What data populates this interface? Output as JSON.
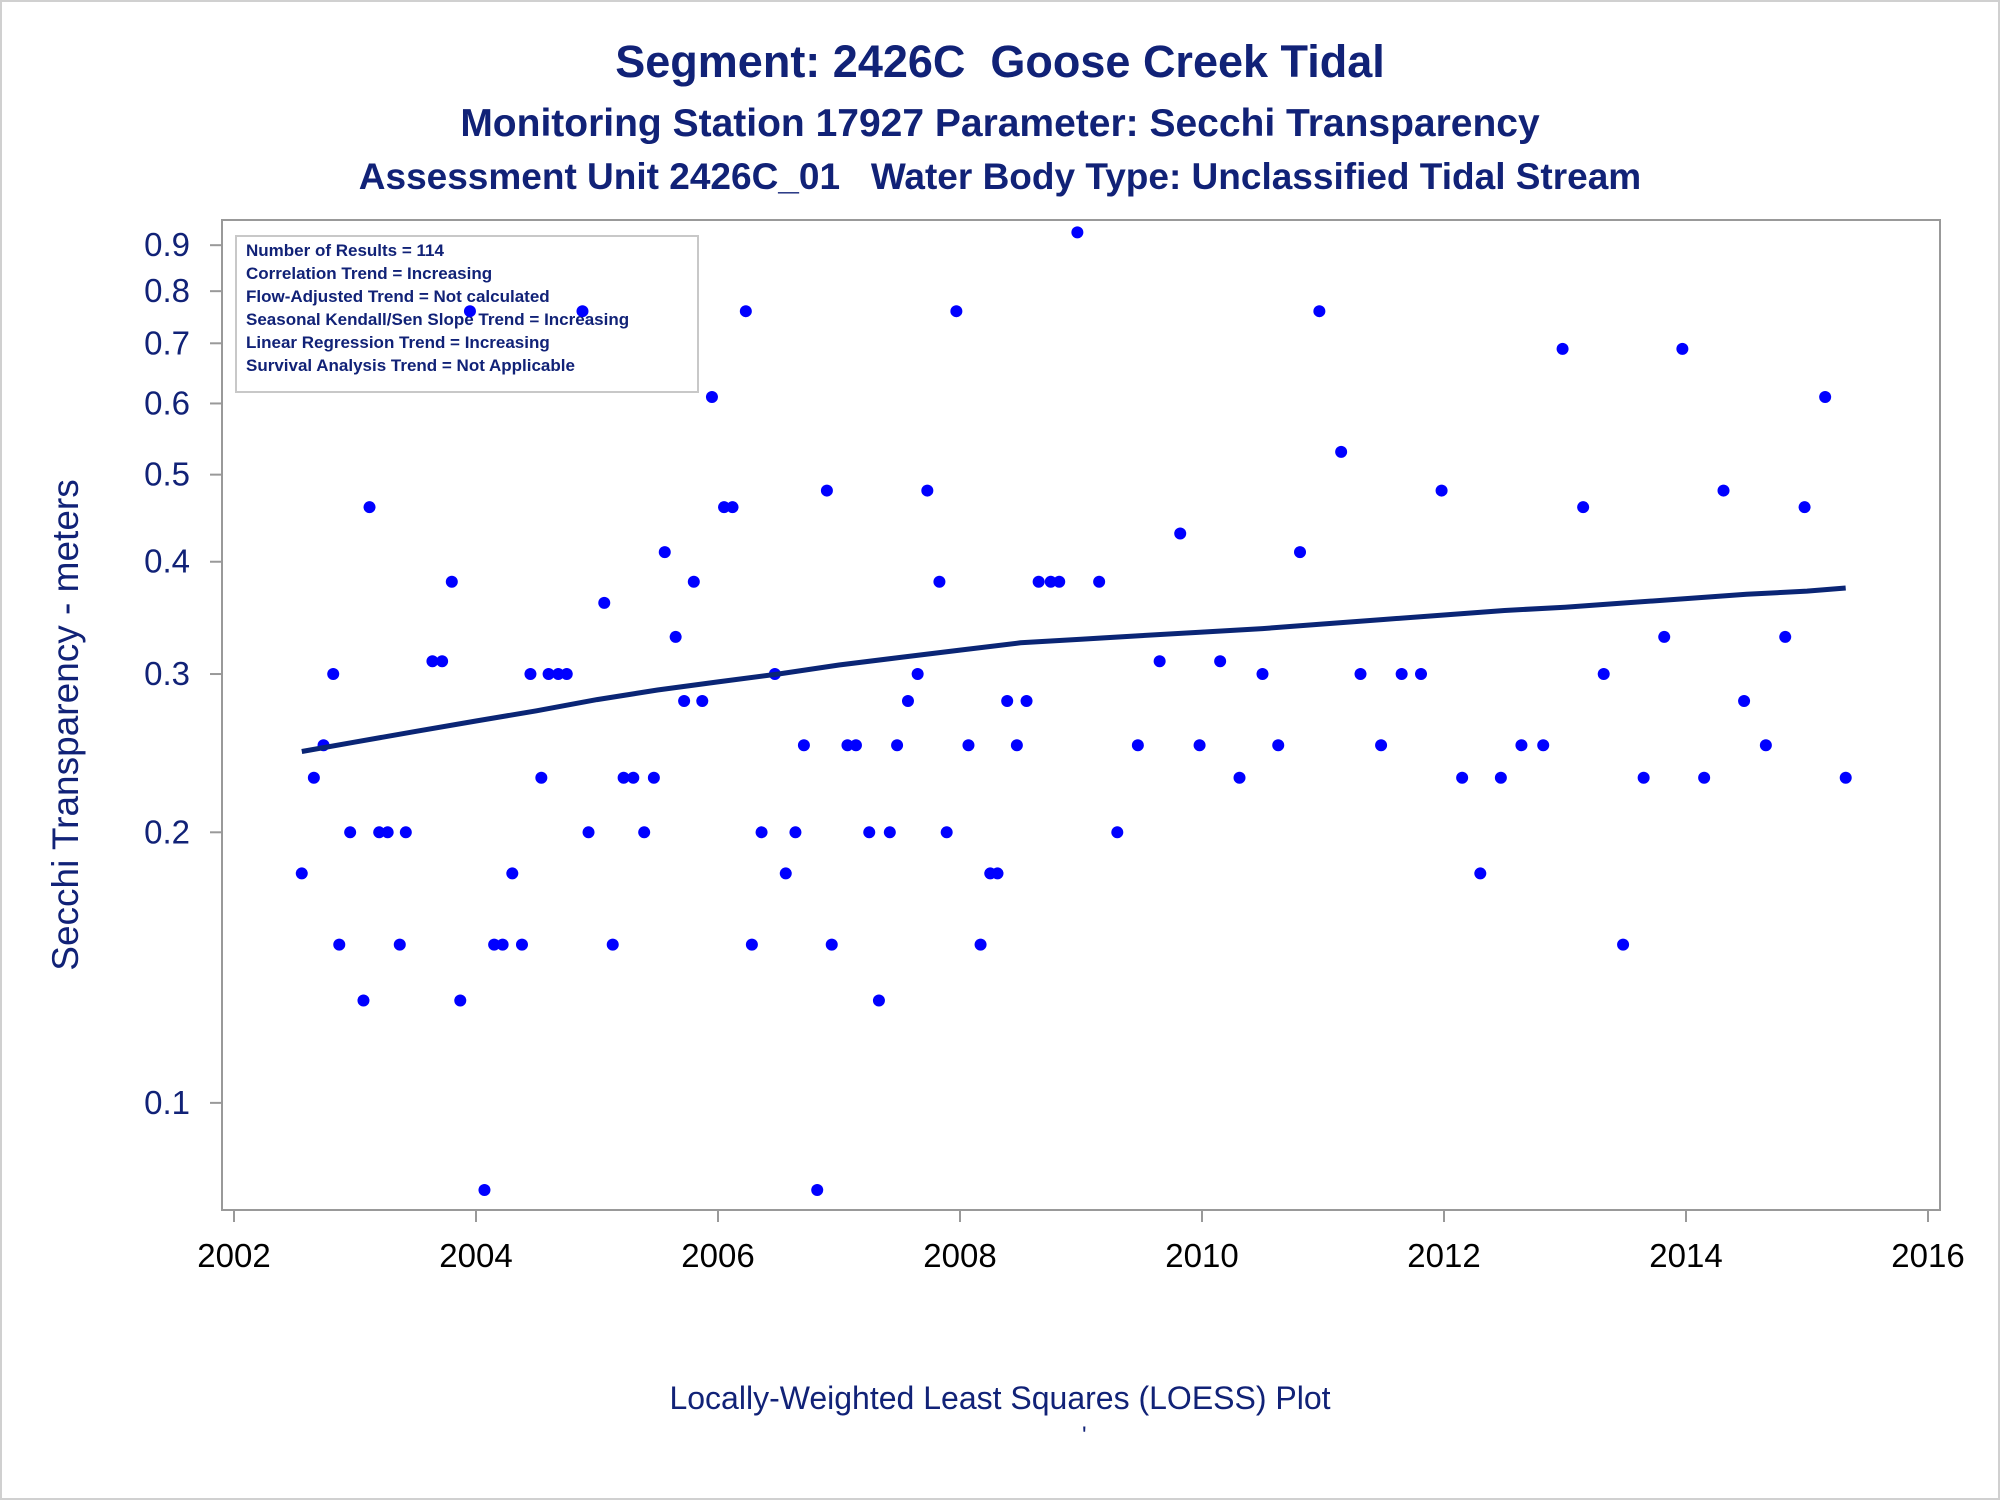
{
  "titles": {
    "line1": "Segment: 2426C  Goose Creek Tidal",
    "line2": "Monitoring Station 17927 Parameter: Secchi Transparency",
    "line3": "Assessment Unit 2426C_01   Water Body Type: Unclassified Tidal Stream"
  },
  "footnote": "Locally-Weighted Least Squares (LOESS) Plot",
  "footnote_mark": "'",
  "colors": {
    "text": "#112277",
    "points": "#0000ff",
    "trend": "#0a2575",
    "axis": "#999999"
  },
  "chart_data": {
    "type": "scatter",
    "xlabel": "",
    "ylabel": "Secchi Transparency - meters",
    "yscale": "log",
    "xlim": [
      2002,
      2016
    ],
    "ylim": [
      0.076,
      0.96
    ],
    "xticks": [
      2002,
      2004,
      2006,
      2008,
      2010,
      2012,
      2014,
      2016
    ],
    "yticks": [
      {
        "value": 0.1,
        "label": "0.1"
      },
      {
        "value": 0.2,
        "label": "0.2"
      },
      {
        "value": 0.3,
        "label": "0.3"
      },
      {
        "value": 0.4,
        "label": "0.4"
      },
      {
        "value": 0.5,
        "label": "0.5"
      },
      {
        "value": 0.6,
        "label": "0.6"
      },
      {
        "value": 0.7,
        "label": "0.7"
      },
      {
        "value": 0.8,
        "label": "0.8"
      },
      {
        "value": 0.9,
        "label": "0.9"
      }
    ],
    "legend": {
      "placement": "top-left",
      "lines": [
        "Number of Results = 114",
        "Correlation Trend = Increasing",
        "Flow-Adjusted Trend = Not calculated",
        "Seasonal Kendall/Sen Slope Trend = Increasing",
        "Linear Regression Trend = Increasing",
        "Survival Analysis Trend = Not Applicable"
      ]
    },
    "series": [
      {
        "kind": "points",
        "points": [
          [
            2002.56,
            0.18
          ],
          [
            2002.66,
            0.23
          ],
          [
            2002.74,
            0.25
          ],
          [
            2002.82,
            0.3
          ],
          [
            2002.87,
            0.15
          ],
          [
            2002.96,
            0.2
          ],
          [
            2003.07,
            0.13
          ],
          [
            2003.12,
            0.46
          ],
          [
            2003.2,
            0.2
          ],
          [
            2003.27,
            0.2
          ],
          [
            2003.37,
            0.15
          ],
          [
            2003.42,
            0.2
          ],
          [
            2003.64,
            0.31
          ],
          [
            2003.72,
            0.31
          ],
          [
            2003.8,
            0.38
          ],
          [
            2003.87,
            0.13
          ],
          [
            2003.95,
            0.76
          ],
          [
            2004.07,
            0.08
          ],
          [
            2004.15,
            0.15
          ],
          [
            2004.22,
            0.15
          ],
          [
            2004.3,
            0.18
          ],
          [
            2004.38,
            0.15
          ],
          [
            2004.45,
            0.3
          ],
          [
            2004.54,
            0.23
          ],
          [
            2004.6,
            0.3
          ],
          [
            2004.68,
            0.3
          ],
          [
            2004.75,
            0.3
          ],
          [
            2004.88,
            0.76
          ],
          [
            2004.93,
            0.2
          ],
          [
            2005.06,
            0.36
          ],
          [
            2005.13,
            0.15
          ],
          [
            2005.22,
            0.23
          ],
          [
            2005.3,
            0.23
          ],
          [
            2005.39,
            0.2
          ],
          [
            2005.47,
            0.23
          ],
          [
            2005.56,
            0.41
          ],
          [
            2005.65,
            0.33
          ],
          [
            2005.72,
            0.28
          ],
          [
            2005.8,
            0.38
          ],
          [
            2005.87,
            0.28
          ],
          [
            2005.95,
            0.61
          ],
          [
            2006.05,
            0.46
          ],
          [
            2006.12,
            0.46
          ],
          [
            2006.23,
            0.76
          ],
          [
            2006.28,
            0.15
          ],
          [
            2006.36,
            0.2
          ],
          [
            2006.47,
            0.3
          ],
          [
            2006.56,
            0.18
          ],
          [
            2006.64,
            0.2
          ],
          [
            2006.71,
            0.25
          ],
          [
            2006.82,
            0.08
          ],
          [
            2006.9,
            0.48
          ],
          [
            2006.94,
            0.15
          ],
          [
            2007.07,
            0.25
          ],
          [
            2007.14,
            0.25
          ],
          [
            2007.25,
            0.2
          ],
          [
            2007.33,
            0.13
          ],
          [
            2007.42,
            0.2
          ],
          [
            2007.48,
            0.25
          ],
          [
            2007.57,
            0.28
          ],
          [
            2007.65,
            0.3
          ],
          [
            2007.73,
            0.48
          ],
          [
            2007.83,
            0.38
          ],
          [
            2007.89,
            0.2
          ],
          [
            2007.97,
            0.76
          ],
          [
            2008.07,
            0.25
          ],
          [
            2008.17,
            0.15
          ],
          [
            2008.25,
            0.18
          ],
          [
            2008.31,
            0.18
          ],
          [
            2008.39,
            0.28
          ],
          [
            2008.47,
            0.25
          ],
          [
            2008.55,
            0.28
          ],
          [
            2008.65,
            0.38
          ],
          [
            2008.75,
            0.38
          ],
          [
            2008.82,
            0.38
          ],
          [
            2008.97,
            0.93
          ],
          [
            2009.15,
            0.38
          ],
          [
            2009.3,
            0.2
          ],
          [
            2009.47,
            0.25
          ],
          [
            2009.65,
            0.31
          ],
          [
            2009.82,
            0.43
          ],
          [
            2009.98,
            0.25
          ],
          [
            2010.15,
            0.31
          ],
          [
            2010.31,
            0.23
          ],
          [
            2010.5,
            0.3
          ],
          [
            2010.63,
            0.25
          ],
          [
            2010.81,
            0.41
          ],
          [
            2010.97,
            0.76
          ],
          [
            2011.15,
            0.53
          ],
          [
            2011.31,
            0.3
          ],
          [
            2011.48,
            0.25
          ],
          [
            2011.65,
            0.3
          ],
          [
            2011.81,
            0.3
          ],
          [
            2011.98,
            0.48
          ],
          [
            2012.15,
            0.23
          ],
          [
            2012.3,
            0.18
          ],
          [
            2012.47,
            0.23
          ],
          [
            2012.64,
            0.25
          ],
          [
            2012.82,
            0.25
          ],
          [
            2012.98,
            0.69
          ],
          [
            2013.15,
            0.46
          ],
          [
            2013.32,
            0.3
          ],
          [
            2013.48,
            0.15
          ],
          [
            2013.65,
            0.23
          ],
          [
            2013.82,
            0.33
          ],
          [
            2013.97,
            0.69
          ],
          [
            2014.15,
            0.23
          ],
          [
            2014.31,
            0.48
          ],
          [
            2014.48,
            0.28
          ],
          [
            2014.66,
            0.25
          ],
          [
            2014.82,
            0.33
          ],
          [
            2014.98,
            0.46
          ],
          [
            2015.15,
            0.61
          ],
          [
            2015.32,
            0.23
          ]
        ]
      },
      {
        "kind": "loess",
        "points": [
          [
            2002.56,
            0.246
          ],
          [
            2003.0,
            0.252
          ],
          [
            2003.5,
            0.259
          ],
          [
            2004.0,
            0.266
          ],
          [
            2004.5,
            0.273
          ],
          [
            2005.0,
            0.281
          ],
          [
            2005.5,
            0.288
          ],
          [
            2006.0,
            0.294
          ],
          [
            2006.5,
            0.3
          ],
          [
            2007.0,
            0.307
          ],
          [
            2007.5,
            0.313
          ],
          [
            2008.0,
            0.319
          ],
          [
            2008.5,
            0.325
          ],
          [
            2009.0,
            0.328
          ],
          [
            2009.5,
            0.331
          ],
          [
            2010.0,
            0.334
          ],
          [
            2010.5,
            0.337
          ],
          [
            2011.0,
            0.341
          ],
          [
            2011.5,
            0.345
          ],
          [
            2012.0,
            0.349
          ],
          [
            2012.5,
            0.353
          ],
          [
            2013.0,
            0.356
          ],
          [
            2013.5,
            0.36
          ],
          [
            2014.0,
            0.364
          ],
          [
            2014.5,
            0.368
          ],
          [
            2015.0,
            0.371
          ],
          [
            2015.32,
            0.374
          ]
        ]
      }
    ]
  }
}
